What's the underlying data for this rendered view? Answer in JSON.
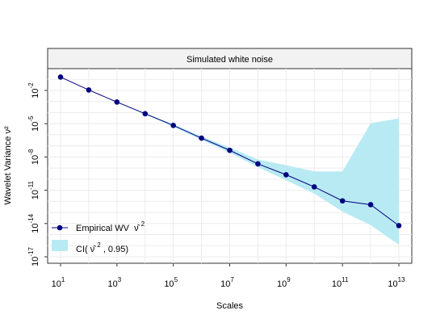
{
  "chart_data": {
    "type": "line",
    "title": "Simulated white noise",
    "xlabel": "Scales",
    "ylabel": "Wavelet Variance ν²",
    "x_scale": "log10",
    "y_scale": "log10",
    "grid": true,
    "legend_position": "bottom-left",
    "xlim": [
      10,
      10000000000000
    ],
    "ylim": [
      1e-17,
      0.1
    ],
    "x_ticks": [
      10,
      1000,
      100000,
      10000000,
      1000000000,
      100000000000,
      10000000000000
    ],
    "x_tick_labels": [
      {
        "base": "10",
        "exp": "1"
      },
      {
        "base": "10",
        "exp": "3"
      },
      {
        "base": "10",
        "exp": "5"
      },
      {
        "base": "10",
        "exp": "7"
      },
      {
        "base": "10",
        "exp": "9"
      },
      {
        "base": "10",
        "exp": "11"
      },
      {
        "base": "10",
        "exp": "13"
      }
    ],
    "y_ticks": [
      0.01,
      1e-05,
      1e-08,
      1e-11,
      1e-14,
      1e-17
    ],
    "y_tick_labels": [
      {
        "base": "10",
        "exp": "-2"
      },
      {
        "base": "10",
        "exp": "-5"
      },
      {
        "base": "10",
        "exp": "-8"
      },
      {
        "base": "10",
        "exp": "-11"
      },
      {
        "base": "10",
        "exp": "-14"
      },
      {
        "base": "10",
        "exp": "-17"
      }
    ],
    "series": [
      {
        "name": "Empirical WV ν̂²",
        "x": [
          10,
          100,
          1000,
          10000,
          100000,
          1000000,
          10000000,
          100000000,
          1000000000,
          10000000000,
          100000000000,
          1000000000000,
          10000000000000
        ],
        "y": [
          0.16,
          0.011,
          0.0009,
          8e-05,
          7e-06,
          5e-07,
          4e-08,
          2.4e-09,
          2.5e-10,
          2e-11,
          1.1e-12,
          5e-13,
          6.5e-15
        ],
        "ci_lower": [
          0.16,
          0.011,
          0.00085,
          7e-05,
          5.5e-06,
          3.5e-07,
          2.4e-08,
          1.2e-09,
          8e-11,
          5e-12,
          1.2e-13,
          7e-15,
          1.2e-16
        ],
        "ci_upper": [
          0.16,
          0.011,
          0.00095,
          9e-05,
          9e-06,
          7e-07,
          7e-08,
          6e-09,
          1.8e-09,
          5e-10,
          5e-10,
          1.1e-05,
          3e-05
        ]
      }
    ],
    "legend": {
      "line_label": "Empirical WV",
      "line_symbol": "ν̂",
      "line_sup": "2",
      "ci_label_prefix": "CI(",
      "ci_symbol": "ν̂",
      "ci_sup": "2",
      "ci_label_suffix": ", 0.95)"
    },
    "colors": {
      "line": "#000080",
      "marker": "#000080",
      "ci_fill": "#b8eaf3",
      "strip_fill": "#f2f2f2",
      "grid": "#ebebeb",
      "frame": "#333333"
    }
  }
}
